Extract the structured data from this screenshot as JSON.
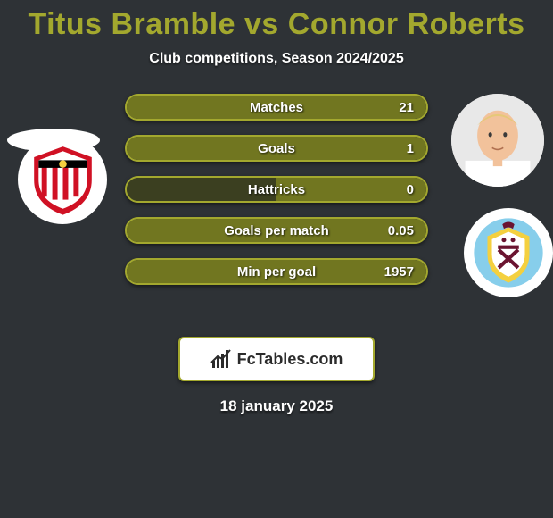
{
  "title": "Titus Bramble vs Connor Roberts",
  "subtitle": "Club competitions, Season 2024/2025",
  "date": "18 january 2025",
  "colors": {
    "title": "#a3a82e",
    "background": "#2e3236",
    "bar_border": "#a3a82e",
    "bar_fill_left": "#3b3f20",
    "bar_fill_right": "#717620",
    "brand_border": "#a3a82e",
    "brand_text": "#2b2b2b",
    "club_left_primary": "#d01124",
    "club_left_secondary": "#ffffff",
    "club_left_stripes": "#000000",
    "club_right_primary": "#87ceeb",
    "club_right_secondary": "#6b1430",
    "club_right_accent": "#f4d03f",
    "player_skin": "#f2c29b",
    "player_hair": "#e6c878",
    "player_shirt": "#ffffff"
  },
  "stats": [
    {
      "label": "Matches",
      "left_pct": 0,
      "value": "21"
    },
    {
      "label": "Goals",
      "left_pct": 0,
      "value": "1"
    },
    {
      "label": "Hattricks",
      "left_pct": 50,
      "value": "0"
    },
    {
      "label": "Goals per match",
      "left_pct": 0,
      "value": "0.05"
    },
    {
      "label": "Min per goal",
      "left_pct": 0,
      "value": "1957"
    }
  ],
  "branding": {
    "text": "FcTables.com"
  },
  "players": {
    "left": {
      "name": "Titus Bramble",
      "club": "Sunderland"
    },
    "right": {
      "name": "Connor Roberts",
      "club": "Burnley"
    }
  }
}
